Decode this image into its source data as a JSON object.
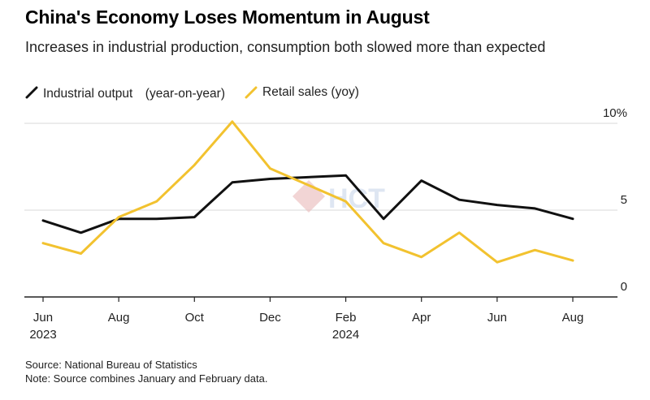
{
  "header": {
    "title": "China's Economy Loses Momentum in August",
    "subtitle": "Increases in industrial production, consumption both slowed more than expected"
  },
  "watermark": {
    "text": "HCT"
  },
  "footer": {
    "source": "Source: National Bureau of Statistics",
    "note": "Note: Source combines January and February data."
  },
  "colors": {
    "industrial": "#111111",
    "retail": "#f2c22f",
    "grid": "#d9d9d9",
    "axis": "#222222"
  },
  "chart_data": {
    "type": "line",
    "title": "China's Economy Loses Momentum in August",
    "xlabel": "",
    "ylabel": "",
    "x": [
      "2023-06",
      "2023-07",
      "2023-08",
      "2023-09",
      "2023-10",
      "2023-11",
      "2023-12",
      "2024-02",
      "2024-03",
      "2024-04",
      "2024-05",
      "2024-06",
      "2024-07",
      "2024-08"
    ],
    "x_index": [
      0,
      1,
      2,
      3,
      4,
      5,
      6,
      8,
      9,
      10,
      11,
      12,
      13,
      14
    ],
    "ticks": [
      {
        "index": 0,
        "label": "Jun",
        "sublabel": "2023"
      },
      {
        "index": 2,
        "label": "Aug",
        "sublabel": ""
      },
      {
        "index": 4,
        "label": "Oct",
        "sublabel": ""
      },
      {
        "index": 6,
        "label": "Dec",
        "sublabel": ""
      },
      {
        "index": 8,
        "label": "Feb",
        "sublabel": "2024"
      },
      {
        "index": 10,
        "label": "Apr",
        "sublabel": ""
      },
      {
        "index": 12,
        "label": "Jun",
        "sublabel": ""
      },
      {
        "index": 14,
        "label": "Aug",
        "sublabel": ""
      }
    ],
    "yticks": [
      {
        "value": 0,
        "label": "0"
      },
      {
        "value": 5,
        "label": "5"
      },
      {
        "value": 10,
        "label": "10%"
      }
    ],
    "ylim": [
      0,
      10
    ],
    "xlim": [
      0,
      14
    ],
    "series": [
      {
        "name": "Industrial output　(year-on-year)",
        "color": "#111111",
        "values": [
          4.4,
          3.7,
          4.5,
          4.5,
          4.6,
          6.6,
          6.8,
          7.0,
          4.5,
          6.7,
          5.6,
          5.3,
          5.1,
          4.5
        ]
      },
      {
        "name": "Retail sales (yoy)",
        "color": "#f2c22f",
        "values": [
          3.1,
          2.5,
          4.6,
          5.5,
          7.6,
          10.1,
          7.4,
          5.5,
          3.1,
          2.3,
          3.7,
          2.0,
          2.7,
          2.1
        ]
      }
    ]
  }
}
